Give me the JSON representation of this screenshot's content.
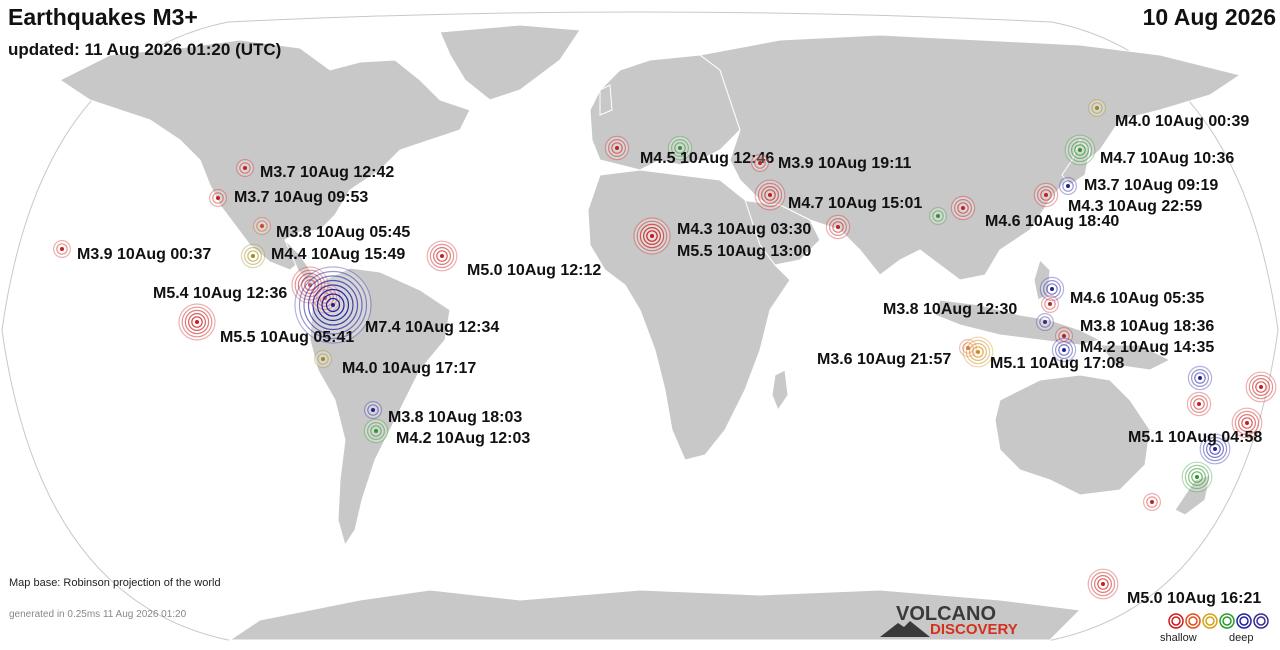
{
  "header": {
    "title": "Earthquakes M3+",
    "updated": "updated: 11 Aug 2026 01:20 (UTC)",
    "date": "10 Aug 2026"
  },
  "footer": {
    "map_base": "Map base: Robinson projection of the world",
    "generated": "generated in 0.25ms 11 Aug 2026 01:20",
    "logo_top": "VOLCANO",
    "logo_bottom": "DISCOVERY"
  },
  "legend": {
    "shallow_label": "shallow",
    "deep_label": "deep",
    "depth_colors": [
      "#cc1c1c",
      "#e0501a",
      "#d8a010",
      "#2a9a2a",
      "#2020a0",
      "#3a2a90"
    ]
  },
  "colors": {
    "ocean": "#ffffff",
    "land": "#c8c8c8",
    "border": "#ffffff"
  },
  "quakes": [
    {
      "label": "M4.0 10Aug 00:39",
      "mag": 4.0,
      "depth": "medium",
      "color": "#a08a10"
    },
    {
      "label": "M4.7 10Aug 10:36",
      "mag": 4.7,
      "depth": "deep-mid",
      "color": "#2a9a2a"
    },
    {
      "label": "M3.7 10Aug 09:19",
      "mag": 3.7,
      "depth": "deep",
      "color": "#2020a0"
    },
    {
      "label": "M4.3 10Aug 22:59",
      "mag": 4.3,
      "depth": "shallow",
      "color": "#cc1c1c"
    },
    {
      "label": "M4.6 10Aug 18:40",
      "mag": 4.6,
      "depth": "shallow",
      "color": "#cc1c1c"
    },
    {
      "label": "M4.5 10Aug 12:46",
      "mag": 4.5,
      "depth": "shallow",
      "color": "#cc1c1c"
    },
    {
      "label": "M3.9 10Aug 19:11",
      "mag": 3.9,
      "depth": "shallow",
      "color": "#cc1c1c"
    },
    {
      "label": "M4.7 10Aug 15:01",
      "mag": 4.7,
      "depth": "shallow",
      "color": "#cc1c1c"
    },
    {
      "label": "M4.3 10Aug 03:30",
      "mag": 4.3,
      "depth": "shallow",
      "color": "#cc1c1c"
    },
    {
      "label": "M5.5 10Aug 13:00",
      "mag": 5.5,
      "depth": "shallow",
      "color": "#cc1c1c"
    },
    {
      "label": "M3.7 10Aug 12:42",
      "mag": 3.7,
      "depth": "shallow",
      "color": "#cc1c1c"
    },
    {
      "label": "M3.7 10Aug 09:53",
      "mag": 3.7,
      "depth": "shallow",
      "color": "#cc1c1c"
    },
    {
      "label": "M3.8 10Aug 05:45",
      "mag": 3.8,
      "depth": "shallow",
      "color": "#d04a1a"
    },
    {
      "label": "M4.4 10Aug 15:49",
      "mag": 4.4,
      "depth": "medium",
      "color": "#a08a10"
    },
    {
      "label": "M3.9 10Aug 00:37",
      "mag": 3.9,
      "depth": "shallow",
      "color": "#cc1c1c"
    },
    {
      "label": "M5.0 10Aug 12:12",
      "mag": 5.0,
      "depth": "shallow",
      "color": "#cc1c1c"
    },
    {
      "label": "M5.4 10Aug 12:36",
      "mag": 5.4,
      "depth": "shallow",
      "color": "#cc1c1c"
    },
    {
      "label": "M7.4 10Aug 12:34",
      "mag": 7.4,
      "depth": "deep",
      "color": "#2020a0"
    },
    {
      "label": "M5.5 10Aug 05:41",
      "mag": 5.5,
      "depth": "shallow",
      "color": "#cc1c1c"
    },
    {
      "label": "M4.0 10Aug 17:17",
      "mag": 4.0,
      "depth": "medium",
      "color": "#a08a10"
    },
    {
      "label": "M3.8 10Aug 18:03",
      "mag": 3.8,
      "depth": "deep",
      "color": "#2020a0"
    },
    {
      "label": "M4.2 10Aug 12:03",
      "mag": 4.2,
      "depth": "deep-mid",
      "color": "#2a9a2a"
    },
    {
      "label": "M4.6 10Aug 05:35",
      "mag": 4.6,
      "depth": "deep",
      "color": "#2020a0"
    },
    {
      "label": "M3.8 10Aug 12:30",
      "mag": 3.8,
      "depth": "shallow",
      "color": "#cc1c1c"
    },
    {
      "label": "M3.8 10Aug 18:36",
      "mag": 3.8,
      "depth": "shallow",
      "color": "#cc1c1c"
    },
    {
      "label": "M4.2 10Aug 14:35",
      "mag": 4.2,
      "depth": "deep",
      "color": "#2020a0"
    },
    {
      "label": "M3.6 10Aug 21:57",
      "mag": 3.6,
      "depth": "shallow",
      "color": "#d04a1a"
    },
    {
      "label": "M5.1 10Aug 17:08",
      "mag": 5.1,
      "depth": "medium",
      "color": "#d08a10"
    },
    {
      "label": "M5.1 10Aug 04:58",
      "mag": 5.1,
      "depth": "deep",
      "color": "#2020a0"
    },
    {
      "label": "M5.0 10Aug 16:21",
      "mag": 5.0,
      "depth": "shallow",
      "color": "#cc1c1c"
    }
  ]
}
